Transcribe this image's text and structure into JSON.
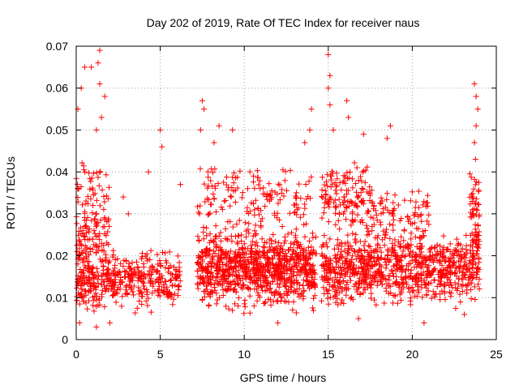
{
  "chart_data": {
    "type": "scatter",
    "title": "Day 202 of 2019, Rate Of TEC Index for receiver naus",
    "xlabel": "GPS time / hours",
    "ylabel": "ROTI / TECUs",
    "xlim": [
      0,
      25
    ],
    "ylim": [
      0,
      0.07
    ],
    "x_ticks": [
      "0",
      "5",
      "10",
      "15",
      "20",
      "25"
    ],
    "y_ticks": [
      "0",
      "0.01",
      "0.02",
      "0.03",
      "0.04",
      "0.05",
      "0.06",
      "0.07"
    ],
    "grid": true,
    "marker": "+",
    "color": "#ff0000",
    "segments": [
      {
        "x": [
          0.0,
          6.2
        ],
        "base": 0.014,
        "spread": 0.009,
        "n": 420
      },
      {
        "x": [
          0.0,
          2.0
        ],
        "base": 0.028,
        "spread": 0.02,
        "n": 160
      },
      {
        "x": [
          7.2,
          14.3
        ],
        "base": 0.017,
        "spread": 0.012,
        "n": 900
      },
      {
        "x": [
          7.2,
          14.3
        ],
        "base": 0.033,
        "spread": 0.012,
        "n": 160
      },
      {
        "x": [
          14.6,
          24.0
        ],
        "base": 0.017,
        "spread": 0.011,
        "n": 900
      },
      {
        "x": [
          14.6,
          17.5
        ],
        "base": 0.034,
        "spread": 0.012,
        "n": 140
      },
      {
        "x": [
          17.5,
          21.0
        ],
        "base": 0.03,
        "spread": 0.01,
        "n": 90
      },
      {
        "x": [
          23.4,
          24.0
        ],
        "base": 0.03,
        "spread": 0.018,
        "n": 60
      }
    ],
    "highlights": [
      {
        "x": 1.4,
        "y": 0.069
      },
      {
        "x": 1.3,
        "y": 0.066
      },
      {
        "x": 0.5,
        "y": 0.065
      },
      {
        "x": 0.9,
        "y": 0.065
      },
      {
        "x": 1.4,
        "y": 0.061
      },
      {
        "x": 1.7,
        "y": 0.058
      },
      {
        "x": 0.1,
        "y": 0.055
      },
      {
        "x": 0.3,
        "y": 0.06
      },
      {
        "x": 1.2,
        "y": 0.05
      },
      {
        "x": 1.5,
        "y": 0.053
      },
      {
        "x": 5.0,
        "y": 0.05
      },
      {
        "x": 5.1,
        "y": 0.046
      },
      {
        "x": 7.5,
        "y": 0.057
      },
      {
        "x": 7.6,
        "y": 0.055
      },
      {
        "x": 7.4,
        "y": 0.05
      },
      {
        "x": 8.5,
        "y": 0.051
      },
      {
        "x": 9.3,
        "y": 0.05
      },
      {
        "x": 8.2,
        "y": 0.047
      },
      {
        "x": 14.0,
        "y": 0.055
      },
      {
        "x": 13.9,
        "y": 0.05
      },
      {
        "x": 13.6,
        "y": 0.047
      },
      {
        "x": 15.0,
        "y": 0.068
      },
      {
        "x": 15.1,
        "y": 0.063
      },
      {
        "x": 15.0,
        "y": 0.06
      },
      {
        "x": 15.1,
        "y": 0.056
      },
      {
        "x": 16.1,
        "y": 0.057
      },
      {
        "x": 16.2,
        "y": 0.053
      },
      {
        "x": 15.3,
        "y": 0.05
      },
      {
        "x": 18.7,
        "y": 0.051
      },
      {
        "x": 18.5,
        "y": 0.048
      },
      {
        "x": 17.1,
        "y": 0.049
      },
      {
        "x": 23.7,
        "y": 0.061
      },
      {
        "x": 23.8,
        "y": 0.058
      },
      {
        "x": 23.9,
        "y": 0.055
      },
      {
        "x": 23.8,
        "y": 0.051
      },
      {
        "x": 23.7,
        "y": 0.047
      },
      {
        "x": 4.3,
        "y": 0.04
      },
      {
        "x": 6.2,
        "y": 0.037
      },
      {
        "x": 2.8,
        "y": 0.034
      },
      {
        "x": 3.1,
        "y": 0.03
      },
      {
        "x": 1.2,
        "y": 0.003
      },
      {
        "x": 2.0,
        "y": 0.004
      },
      {
        "x": 0.2,
        "y": 0.004
      },
      {
        "x": 12.0,
        "y": 0.004
      },
      {
        "x": 20.7,
        "y": 0.004
      },
      {
        "x": 16.8,
        "y": 0.005
      },
      {
        "x": 23.1,
        "y": 0.006
      }
    ]
  }
}
